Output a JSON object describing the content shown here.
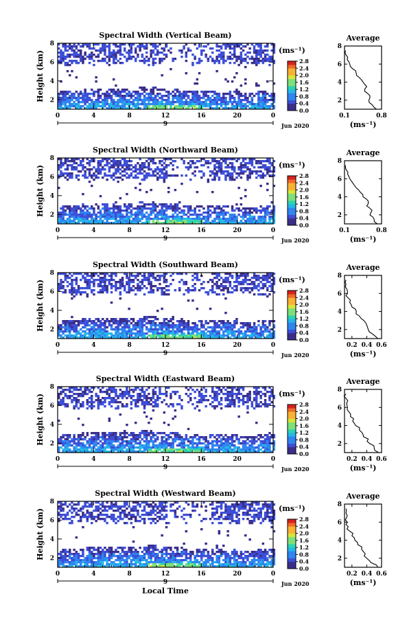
{
  "figure": {
    "x_axis_label": "Local Time",
    "x_ticks": [
      "0",
      "4",
      "8",
      "12",
      "16",
      "20",
      "0"
    ],
    "day_label": "9",
    "date_label": "Jun 2020",
    "y_axis_label": "Height (km)",
    "y_ticks": [
      "2",
      "4",
      "6",
      "8"
    ],
    "colorbar_unit": "(ms⁻¹)",
    "colorbar_ticks": [
      "0.0",
      "0.4",
      "0.8",
      "1.2",
      "1.6",
      "2.0",
      "2.4",
      "2.8"
    ],
    "profile_title": "Average",
    "profile_unit": "(ms⁻¹)",
    "colors": {
      "colormap": [
        "#3b2f8a",
        "#3d4fd8",
        "#2f86f0",
        "#25b8e8",
        "#2ed3b0",
        "#7de07a",
        "#d9e53a",
        "#f9b233",
        "#f06a2a",
        "#d7231f"
      ],
      "profile_line": "#000000",
      "axis": "#000000"
    }
  },
  "chart_data": [
    {
      "type": "heatmap",
      "title": "Spectral Width (Vertical Beam)",
      "xlabel": "",
      "ylabel": "Height (km)",
      "xlim": [
        0,
        24
      ],
      "ylim": [
        1,
        8
      ],
      "clim": [
        0.0,
        2.8
      ],
      "layers": [
        {
          "h_from": 1.0,
          "h_to": 3.6,
          "t_from": 0,
          "t_to": 24,
          "value": 0.6
        },
        {
          "h_from": 6.2,
          "h_to": 8.0,
          "t_from": 0,
          "t_to": 24,
          "value": 0.2
        }
      ],
      "profile": {
        "title": "Average",
        "xlim": [
          0.1,
          0.8
        ],
        "xticks": [
          "0.1",
          "0.8"
        ],
        "ylim": [
          1,
          8
        ],
        "yticks": [
          "2",
          "4",
          "6",
          "8"
        ],
        "heights": [
          1.0,
          1.5,
          2.0,
          2.5,
          3.0,
          3.5,
          4.0,
          4.5,
          5.0,
          5.5,
          6.0,
          6.5,
          7.0,
          7.5
        ],
        "values": [
          0.7,
          0.62,
          0.56,
          0.58,
          0.48,
          0.52,
          0.45,
          0.38,
          0.32,
          0.25,
          0.2,
          0.15,
          0.13,
          0.12
        ]
      }
    },
    {
      "type": "heatmap",
      "title": "Spectral Width (Northward Beam)",
      "xlabel": "",
      "ylabel": "Height (km)",
      "xlim": [
        0,
        24
      ],
      "ylim": [
        1,
        8
      ],
      "clim": [
        0.0,
        2.8
      ],
      "layers": [
        {
          "h_from": 1.0,
          "h_to": 3.6,
          "t_from": 0,
          "t_to": 24,
          "value": 0.6
        },
        {
          "h_from": 6.2,
          "h_to": 8.0,
          "t_from": 0,
          "t_to": 24,
          "value": 0.2
        }
      ],
      "profile": {
        "title": "Average",
        "xlim": [
          0.1,
          0.8
        ],
        "xticks": [
          "0.1",
          "0.8"
        ],
        "ylim": [
          1,
          8
        ],
        "yticks": [
          "2",
          "4",
          "6",
          "8"
        ],
        "heights": [
          1.0,
          1.5,
          2.0,
          2.5,
          3.0,
          3.5,
          4.0,
          4.5,
          5.0,
          5.5,
          6.0,
          6.5,
          7.0,
          7.5
        ],
        "values": [
          0.72,
          0.66,
          0.58,
          0.62,
          0.52,
          0.55,
          0.45,
          0.4,
          0.32,
          0.26,
          0.2,
          0.16,
          0.13,
          0.12
        ]
      }
    },
    {
      "type": "heatmap",
      "title": "Spectral Width (Southward Beam)",
      "xlabel": "",
      "ylabel": "Height (km)",
      "xlim": [
        0,
        24
      ],
      "ylim": [
        1,
        8
      ],
      "clim": [
        0.0,
        2.8
      ],
      "layers": [
        {
          "h_from": 1.0,
          "h_to": 3.6,
          "t_from": 0,
          "t_to": 24,
          "value": 0.6
        },
        {
          "h_from": 6.2,
          "h_to": 8.0,
          "t_from": 0,
          "t_to": 24,
          "value": 0.2
        }
      ],
      "profile": {
        "title": "Average",
        "xlim": [
          0.1,
          0.6
        ],
        "xticks": [
          "0.2",
          "0.4",
          "0.6"
        ],
        "ylim": [
          1,
          8
        ],
        "yticks": [
          "2",
          "4",
          "6",
          "8"
        ],
        "heights": [
          1.0,
          1.5,
          2.0,
          2.5,
          3.0,
          3.5,
          4.0,
          4.5,
          5.0,
          5.5,
          6.0,
          6.5,
          7.0,
          7.5
        ],
        "values": [
          0.55,
          0.48,
          0.42,
          0.4,
          0.36,
          0.3,
          0.26,
          0.2,
          0.17,
          0.15,
          0.14,
          0.13,
          0.12,
          0.12
        ]
      }
    },
    {
      "type": "heatmap",
      "title": "Spectral Width (Eastward Beam)",
      "xlabel": "",
      "ylabel": "Height (km)",
      "xlim": [
        0,
        24
      ],
      "ylim": [
        1,
        8
      ],
      "clim": [
        0.0,
        2.8
      ],
      "layers": [
        {
          "h_from": 1.0,
          "h_to": 3.6,
          "t_from": 0,
          "t_to": 24,
          "value": 0.6
        },
        {
          "h_from": 6.2,
          "h_to": 8.0,
          "t_from": 0,
          "t_to": 24,
          "value": 0.2
        }
      ],
      "profile": {
        "title": "Average",
        "xlim": [
          0.1,
          0.6
        ],
        "xticks": [
          "0.2",
          "0.4",
          "0.6"
        ],
        "ylim": [
          1,
          8
        ],
        "yticks": [
          "2",
          "4",
          "6",
          "8"
        ],
        "heights": [
          1.0,
          1.5,
          2.0,
          2.5,
          3.0,
          3.5,
          4.0,
          4.5,
          5.0,
          5.5,
          6.0,
          6.5,
          7.0,
          7.5
        ],
        "values": [
          0.56,
          0.5,
          0.44,
          0.42,
          0.35,
          0.3,
          0.25,
          0.21,
          0.18,
          0.16,
          0.14,
          0.13,
          0.12,
          0.12
        ]
      }
    },
    {
      "type": "heatmap",
      "title": "Spectral Width (Westward Beam)",
      "xlabel": "Local Time",
      "ylabel": "Height (km)",
      "xlim": [
        0,
        24
      ],
      "ylim": [
        1,
        8
      ],
      "clim": [
        0.0,
        2.8
      ],
      "layers": [
        {
          "h_from": 1.0,
          "h_to": 3.6,
          "t_from": 0,
          "t_to": 24,
          "value": 0.6
        },
        {
          "h_from": 6.2,
          "h_to": 8.0,
          "t_from": 0,
          "t_to": 24,
          "value": 0.2
        }
      ],
      "profile": {
        "title": "Average",
        "xlim": [
          0.1,
          0.6
        ],
        "xticks": [
          "0.2",
          "0.4",
          "0.6"
        ],
        "ylim": [
          1,
          8
        ],
        "yticks": [
          "2",
          "4",
          "6",
          "8"
        ],
        "heights": [
          1.0,
          1.5,
          2.0,
          2.5,
          3.0,
          3.5,
          4.0,
          4.5,
          5.0,
          5.5,
          6.0,
          6.5,
          7.0,
          7.5
        ],
        "values": [
          0.55,
          0.46,
          0.4,
          0.38,
          0.33,
          0.28,
          0.24,
          0.2,
          0.17,
          0.15,
          0.14,
          0.13,
          0.12,
          0.12
        ]
      }
    }
  ]
}
